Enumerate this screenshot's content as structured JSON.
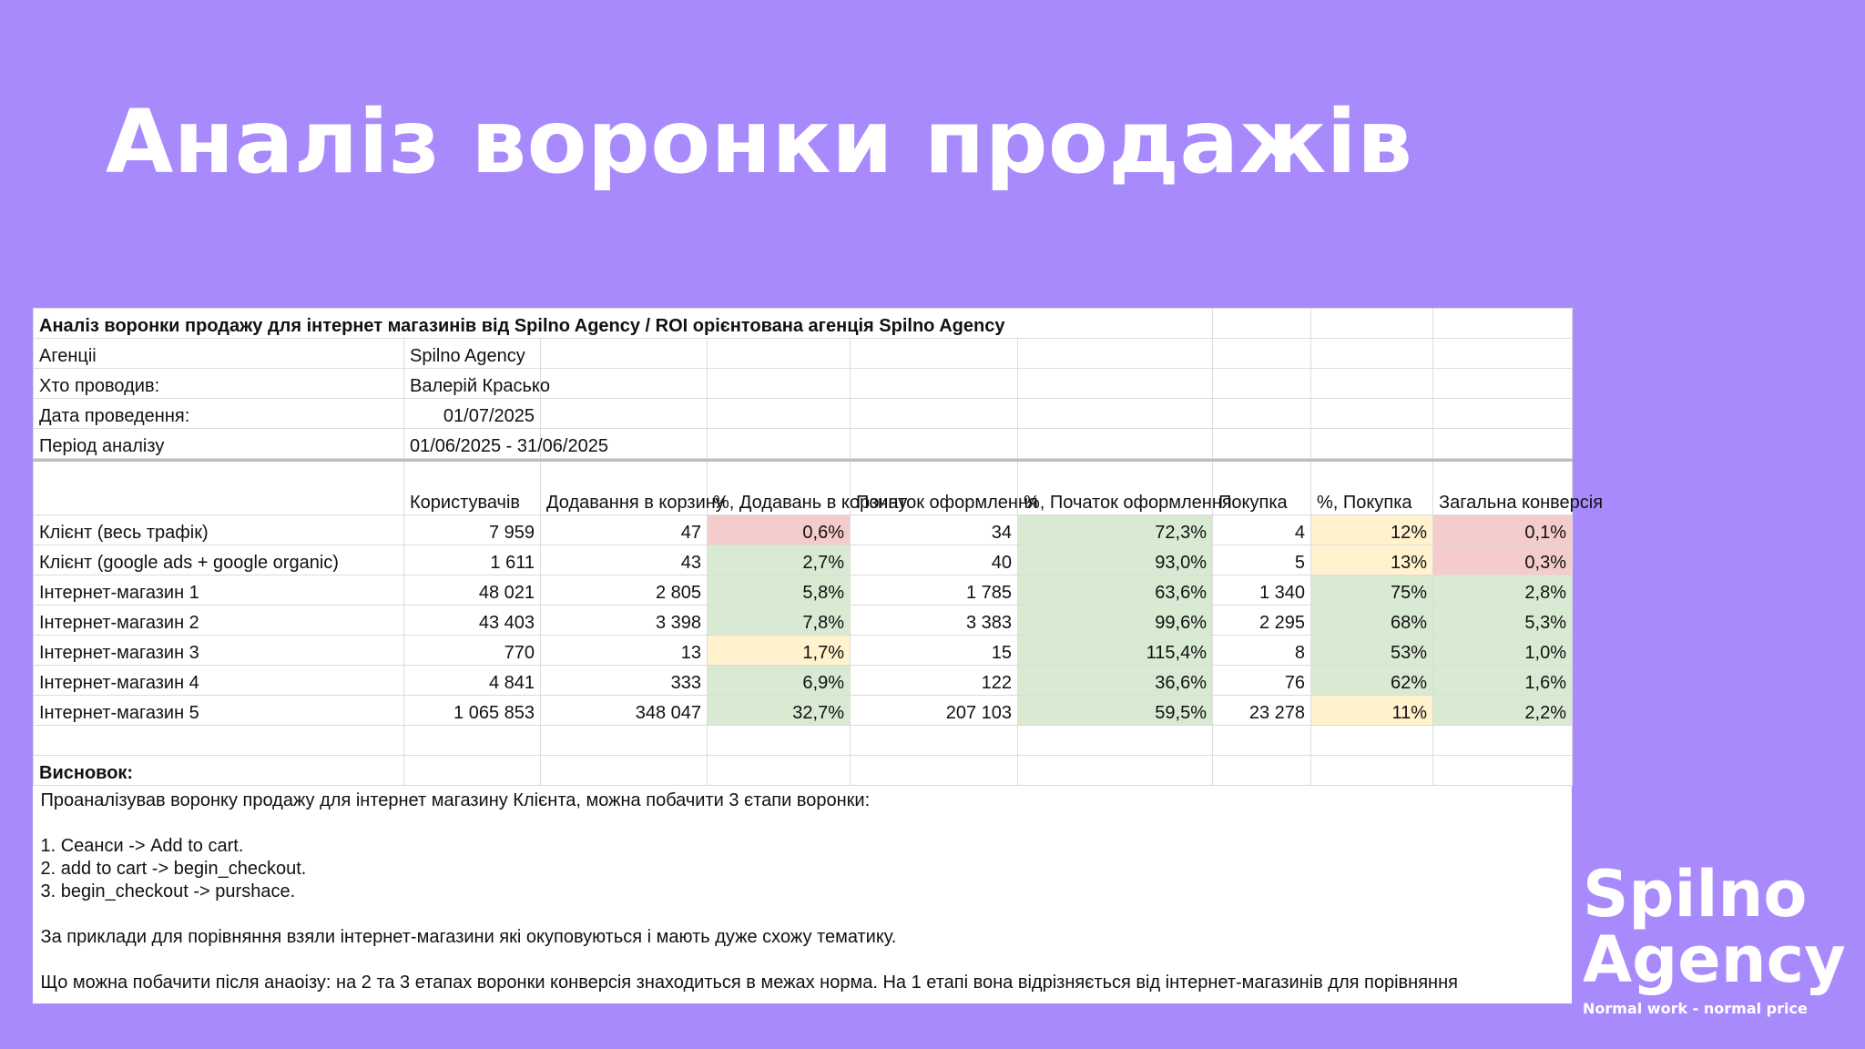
{
  "page": {
    "title": "Аналіз воронки продажів"
  },
  "sheet": {
    "title": "Аналіз воронки продажу для інтернет магазинів від Spilno Agency / ROI орієнтована агенція Spilno Agency",
    "meta": [
      {
        "label": "Агенціі",
        "value": "Spilno Agency",
        "align": "left"
      },
      {
        "label": "Хто проводив:",
        "value": "Валерій Красько",
        "align": "left"
      },
      {
        "label": "Дата проведення:",
        "value": "01/07/2025",
        "align": "right"
      },
      {
        "label": "Період аналізу",
        "value": "01/06/2025 - 31/06/2025",
        "align": "left"
      }
    ],
    "headers": [
      "",
      "Користувачів",
      "Додавання в корзину",
      "%, Додавань в корзину",
      "Початок оформлення",
      "%, Початок оформлення",
      "Покупка",
      "%, Покупка",
      "Загальна конверсія"
    ],
    "rows": [
      {
        "name": "Клієнт (весь трафік)",
        "users": "7 959",
        "cart": "47",
        "cart_pct": "0,6%",
        "checkout": "34",
        "checkout_pct": "72,3%",
        "purchase": "4",
        "purchase_pct": "12%",
        "total": "0,1%",
        "colors": [
          "red",
          "grn",
          "yel",
          "red"
        ]
      },
      {
        "name": "Клієнт (google ads + google organic)",
        "users": "1 611",
        "cart": "43",
        "cart_pct": "2,7%",
        "checkout": "40",
        "checkout_pct": "93,0%",
        "purchase": "5",
        "purchase_pct": "13%",
        "total": "0,3%",
        "colors": [
          "grn",
          "grn",
          "yel",
          "red"
        ]
      },
      {
        "name": "Інтернет-магазин 1",
        "users": "48 021",
        "cart": "2 805",
        "cart_pct": "5,8%",
        "checkout": "1 785",
        "checkout_pct": "63,6%",
        "purchase": "1 340",
        "purchase_pct": "75%",
        "total": "2,8%",
        "colors": [
          "grn",
          "grn",
          "grn",
          "grn"
        ]
      },
      {
        "name": "Інтернет-магазин 2",
        "users": "43 403",
        "cart": "3 398",
        "cart_pct": "7,8%",
        "checkout": "3 383",
        "checkout_pct": "99,6%",
        "purchase": "2 295",
        "purchase_pct": "68%",
        "total": "5,3%",
        "colors": [
          "grn",
          "grn",
          "grn",
          "grn"
        ]
      },
      {
        "name": "Інтернет-магазин 3",
        "users": "770",
        "cart": "13",
        "cart_pct": "1,7%",
        "checkout": "15",
        "checkout_pct": "115,4%",
        "purchase": "8",
        "purchase_pct": "53%",
        "total": "1,0%",
        "colors": [
          "yel",
          "grn",
          "grn",
          "grn"
        ]
      },
      {
        "name": "Інтернет-магазин 4",
        "users": "4 841",
        "cart": "333",
        "cart_pct": "6,9%",
        "checkout": "122",
        "checkout_pct": "36,6%",
        "purchase": "76",
        "purchase_pct": "62%",
        "total": "1,6%",
        "colors": [
          "grn",
          "grn",
          "grn",
          "grn"
        ]
      },
      {
        "name": "Інтернет-магазин 5",
        "users": "1 065 853",
        "cart": "348 047",
        "cart_pct": "32,7%",
        "checkout": "207 103",
        "checkout_pct": "59,5%",
        "purchase": "23 278",
        "purchase_pct": "11%",
        "total": "2,2%",
        "colors": [
          "grn",
          "grn",
          "yel",
          "grn"
        ]
      }
    ],
    "conclusion_label": "Висновок:",
    "conclusion": {
      "intro": "Проаналізував воронку продажу для інтернет магазину Клієнта, можна побачити 3 єтапи воронки:",
      "step1": "1. Сеанси -> Add to cart.",
      "step2": "2. add to cart -> begin_checkout.",
      "step3": "3. begin_checkout -> purshace.",
      "examples": "За приклади для порівняння взяли інтернет-магазини які окуповуються і мають дуже схожу тематику.",
      "findings": "Що можна побачити після анаоізу: на 2 та 3 етапах воронки конверсія знаходиться в межах норма. На 1 етапі вона відрізняється від інтернет-магазинів для порівняння"
    }
  },
  "logo": {
    "line1": "Spilno",
    "line2": "Agency",
    "tagline": "Normal work - normal price"
  },
  "colors": {
    "background": "#a98afc",
    "red": "#f4cccc",
    "yellow": "#fff2cc",
    "green": "#d9ead3"
  }
}
